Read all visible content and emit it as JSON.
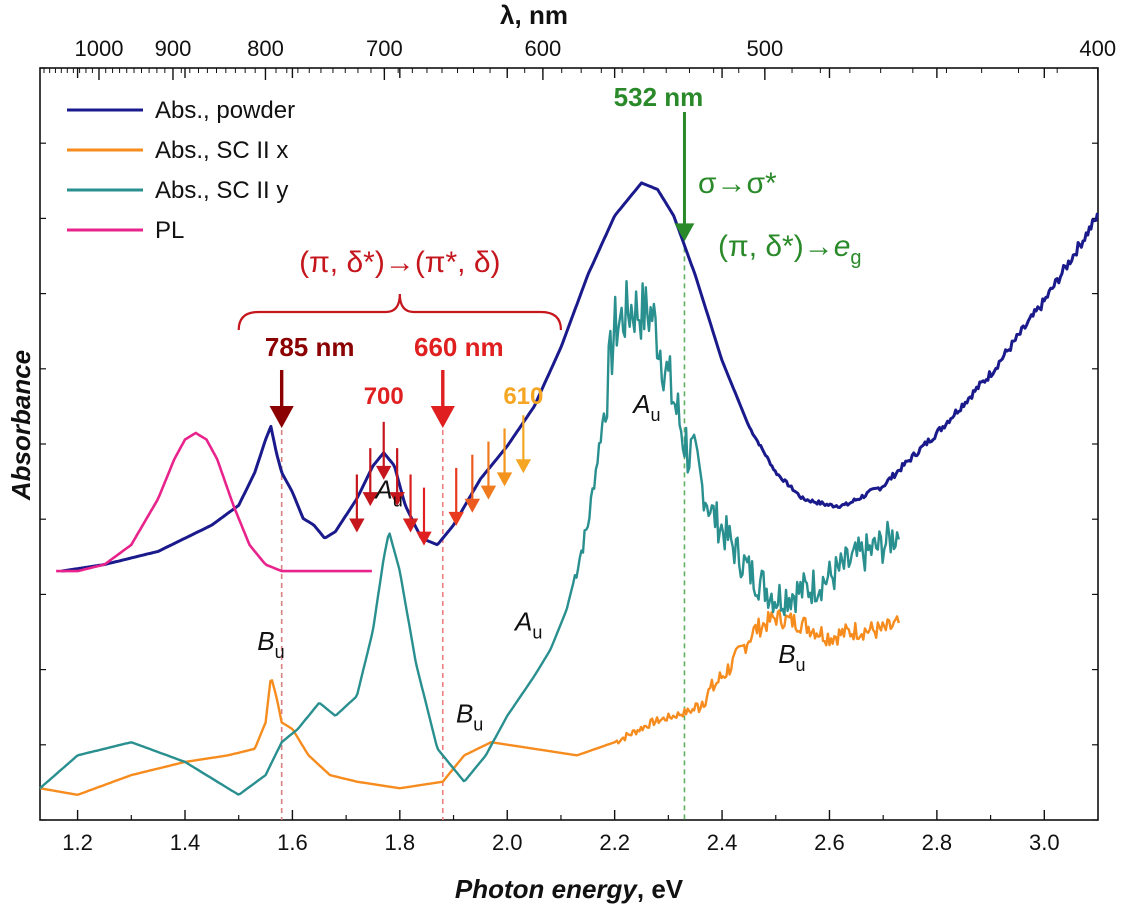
{
  "chart_data": {
    "type": "line",
    "xlabel_bold_italic": "Photon energy",
    "xlabel_suffix": ", eV",
    "ylabel": "Absorbance",
    "top_axis_label": "λ, nm",
    "xlim": [
      1.13,
      3.1
    ],
    "x_ticks": [
      "1.2",
      "1.4",
      "1.6",
      "1.8",
      "2.0",
      "2.2",
      "2.4",
      "2.6",
      "2.8",
      "3.0"
    ],
    "x_tick_values": [
      1.2,
      1.4,
      1.6,
      1.8,
      2.0,
      2.2,
      2.4,
      2.6,
      2.8,
      3.0
    ],
    "top_ticks": [
      "1000",
      "900",
      "800",
      "700",
      "600",
      "500",
      "400"
    ],
    "top_tick_values": [
      1000,
      900,
      800,
      700,
      600,
      500,
      400
    ],
    "ylim": [
      0,
      1
    ],
    "grid": false,
    "legend_position": "top-left",
    "colors": {
      "powder": "#1a1a8c",
      "sc_x": "#f78c1e",
      "sc_y": "#2a8f8f",
      "pl": "#e8248c",
      "brace": "#c4161c",
      "green": "#2a8a2a",
      "dark_red": "#8b0000",
      "red": "#e02020",
      "orange": "#f5a623"
    },
    "series": [
      {
        "name": "Abs., powder",
        "key": "powder",
        "x": [
          1.17,
          1.25,
          1.35,
          1.45,
          1.5,
          1.53,
          1.55,
          1.56,
          1.57,
          1.58,
          1.6,
          1.62,
          1.64,
          1.66,
          1.68,
          1.72,
          1.75,
          1.77,
          1.79,
          1.81,
          1.84,
          1.87,
          1.9,
          1.95,
          2.0,
          2.05,
          2.1,
          2.15,
          2.2,
          2.25,
          2.28,
          2.31,
          2.35,
          2.4,
          2.45,
          2.5,
          2.55,
          2.6,
          2.63,
          2.7,
          2.8,
          2.9,
          3.0,
          3.1
        ],
        "y": [
          0.36,
          0.37,
          0.39,
          0.43,
          0.46,
          0.51,
          0.56,
          0.58,
          0.54,
          0.51,
          0.48,
          0.44,
          0.43,
          0.41,
          0.42,
          0.47,
          0.52,
          0.54,
          0.52,
          0.46,
          0.41,
          0.4,
          0.43,
          0.5,
          0.55,
          0.61,
          0.7,
          0.81,
          0.9,
          0.95,
          0.94,
          0.9,
          0.81,
          0.68,
          0.58,
          0.51,
          0.47,
          0.46,
          0.46,
          0.49,
          0.57,
          0.66,
          0.77,
          0.9
        ]
      },
      {
        "name": "Abs., SC II x",
        "key": "sc_x",
        "x": [
          1.13,
          1.2,
          1.3,
          1.4,
          1.48,
          1.53,
          1.55,
          1.56,
          1.57,
          1.58,
          1.6,
          1.63,
          1.67,
          1.72,
          1.8,
          1.88,
          1.92,
          1.97,
          2.05,
          2.13,
          2.2,
          2.27,
          2.35,
          2.42,
          2.46,
          2.5,
          2.55,
          2.6,
          2.65,
          2.7,
          2.73
        ],
        "y": [
          0.03,
          0.02,
          0.05,
          0.07,
          0.08,
          0.09,
          0.13,
          0.2,
          0.17,
          0.13,
          0.12,
          0.08,
          0.05,
          0.04,
          0.03,
          0.04,
          0.08,
          0.1,
          0.09,
          0.08,
          0.1,
          0.13,
          0.15,
          0.22,
          0.27,
          0.29,
          0.28,
          0.26,
          0.27,
          0.27,
          0.28
        ]
      },
      {
        "name": "Abs., SC II y",
        "key": "sc_y",
        "x": [
          1.13,
          1.2,
          1.3,
          1.4,
          1.5,
          1.55,
          1.58,
          1.61,
          1.63,
          1.65,
          1.68,
          1.72,
          1.75,
          1.77,
          1.78,
          1.8,
          1.83,
          1.87,
          1.92,
          1.96,
          2.0,
          2.05,
          2.08,
          2.11,
          2.15,
          2.18,
          2.2,
          2.23,
          2.27,
          2.3,
          2.33,
          2.38,
          2.45,
          2.5,
          2.55,
          2.6,
          2.65,
          2.7,
          2.73
        ],
        "y": [
          0.03,
          0.08,
          0.1,
          0.07,
          0.02,
          0.05,
          0.1,
          0.12,
          0.14,
          0.16,
          0.14,
          0.17,
          0.27,
          0.38,
          0.42,
          0.36,
          0.22,
          0.09,
          0.04,
          0.08,
          0.14,
          0.2,
          0.24,
          0.3,
          0.43,
          0.6,
          0.73,
          0.76,
          0.75,
          0.65,
          0.56,
          0.45,
          0.36,
          0.32,
          0.33,
          0.35,
          0.38,
          0.4,
          0.42
        ]
      },
      {
        "name": "PL",
        "key": "pl",
        "x": [
          1.16,
          1.2,
          1.25,
          1.3,
          1.35,
          1.38,
          1.4,
          1.42,
          1.44,
          1.46,
          1.49,
          1.52,
          1.55,
          1.58,
          1.62,
          1.66,
          1.7,
          1.75
        ],
        "y": [
          0.36,
          0.36,
          0.37,
          0.4,
          0.47,
          0.53,
          0.56,
          0.57,
          0.56,
          0.53,
          0.46,
          0.4,
          0.37,
          0.36,
          0.36,
          0.36,
          0.36,
          0.36
        ]
      }
    ],
    "brace_label": "(π, δ*)→(π*, δ)",
    "brace_range": [
      1.5,
      2.1
    ],
    "green_label_1": "σ→σ*",
    "green_label_2_prefix": "(π, δ*)→",
    "green_label_2_e": "e",
    "green_label_2_sub": "g",
    "arrow_main": [
      {
        "x": 1.58,
        "label": "785 nm",
        "color": "dark_red"
      },
      {
        "x": 1.88,
        "label": "660 nm",
        "color": "red"
      },
      {
        "x": 2.33,
        "label": "532 nm",
        "color": "green"
      }
    ],
    "arrow_small_labels": [
      {
        "x": 1.77,
        "label": "700",
        "color": "red"
      },
      {
        "x": 2.03,
        "label": "610",
        "color": "orange"
      }
    ],
    "arrow_small": [
      {
        "x": 1.72,
        "y": 0.44,
        "color": "#c4161c"
      },
      {
        "x": 1.745,
        "y": 0.48,
        "color": "#c4161c"
      },
      {
        "x": 1.77,
        "y": 0.52,
        "color": "#c4161c"
      },
      {
        "x": 1.795,
        "y": 0.48,
        "color": "#c4161c"
      },
      {
        "x": 1.82,
        "y": 0.44,
        "color": "#d8201e"
      },
      {
        "x": 1.845,
        "y": 0.42,
        "color": "#e02020"
      },
      {
        "x": 1.905,
        "y": 0.45,
        "color": "#e83a1e"
      },
      {
        "x": 1.935,
        "y": 0.47,
        "color": "#ec5a1e"
      },
      {
        "x": 1.965,
        "y": 0.49,
        "color": "#f07a1e"
      },
      {
        "x": 1.995,
        "y": 0.51,
        "color": "#f3941f"
      },
      {
        "x": 2.03,
        "y": 0.53,
        "color": "#f5a623"
      }
    ],
    "peak_labels": [
      {
        "x": 1.56,
        "y": 0.24,
        "text": "B",
        "sub": "u"
      },
      {
        "x": 1.78,
        "y": 0.47,
        "text": "A",
        "sub": "u"
      },
      {
        "x": 1.93,
        "y": 0.13,
        "text": "B",
        "sub": "u"
      },
      {
        "x": 2.04,
        "y": 0.27,
        "text": "A",
        "sub": "u"
      },
      {
        "x": 2.26,
        "y": 0.6,
        "text": "A",
        "sub": "u"
      },
      {
        "x": 2.53,
        "y": 0.22,
        "text": "B",
        "sub": "u"
      }
    ]
  }
}
